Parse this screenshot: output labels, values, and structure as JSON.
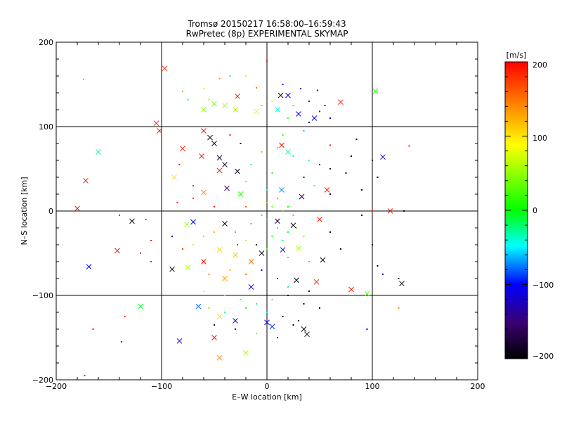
{
  "chart_data": {
    "type": "scatter",
    "title": "Tromsø 20150217 16:58:00–16:59:43",
    "subtitle": "RwPretec (8p) EXPERIMENTAL SKYMAP",
    "xlabel": "E–W location [km]",
    "ylabel": "N–S location [km]",
    "xlim": [
      -200,
      200
    ],
    "ylim": [
      -200,
      200
    ],
    "grid": true,
    "x_ticks": [
      "−200",
      "−100",
      "0",
      "100",
      "200"
    ],
    "y_ticks": [
      "−200",
      "−100",
      "0",
      "100",
      "200"
    ],
    "colorbar": {
      "label": "[m/s]",
      "range": [
        -200,
        200
      ],
      "ticks": [
        "200",
        "100",
        "0",
        "−100",
        "−200"
      ],
      "colormap": "rainbow (black-purple-blue-cyan-green-yellow-red)"
    },
    "cross_points": [
      {
        "x": 103,
        "y": 142,
        "v": 10
      },
      {
        "x": -97,
        "y": 169,
        "v": 185
      },
      {
        "x": -28,
        "y": 136,
        "v": 190
      },
      {
        "x": 13,
        "y": 137,
        "v": -180
      },
      {
        "x": 20,
        "y": 137,
        "v": -100
      },
      {
        "x": 70,
        "y": 129,
        "v": 190
      },
      {
        "x": -40,
        "y": 125,
        "v": 60
      },
      {
        "x": -50,
        "y": 127,
        "v": 40
      },
      {
        "x": -60,
        "y": 120,
        "v": 50
      },
      {
        "x": -30,
        "y": 120,
        "v": 60
      },
      {
        "x": -10,
        "y": 118,
        "v": 80
      },
      {
        "x": 10,
        "y": 120,
        "v": -40
      },
      {
        "x": 30,
        "y": 115,
        "v": -100
      },
      {
        "x": 45,
        "y": 110,
        "v": -110
      },
      {
        "x": -105,
        "y": 104,
        "v": 190
      },
      {
        "x": -102,
        "y": 95,
        "v": 190
      },
      {
        "x": -60,
        "y": 95,
        "v": 190
      },
      {
        "x": -80,
        "y": 74,
        "v": 190
      },
      {
        "x": -54,
        "y": 87,
        "v": -190
      },
      {
        "x": -50,
        "y": 80,
        "v": -190
      },
      {
        "x": -45,
        "y": 63,
        "v": -180
      },
      {
        "x": -40,
        "y": 55,
        "v": -170
      },
      {
        "x": 14,
        "y": 78,
        "v": 190
      },
      {
        "x": 20,
        "y": 70,
        "v": -30
      },
      {
        "x": 110,
        "y": 64,
        "v": -110
      },
      {
        "x": -62,
        "y": 65,
        "v": 190
      },
      {
        "x": -28,
        "y": 47,
        "v": -190
      },
      {
        "x": -45,
        "y": 48,
        "v": 190
      },
      {
        "x": -88,
        "y": 40,
        "v": 100
      },
      {
        "x": -38,
        "y": 27,
        "v": -150
      },
      {
        "x": -25,
        "y": 20,
        "v": 10
      },
      {
        "x": -172,
        "y": 36,
        "v": 190
      },
      {
        "x": -160,
        "y": 70,
        "v": -30
      },
      {
        "x": -180,
        "y": 3,
        "v": 190
      },
      {
        "x": -60,
        "y": 22,
        "v": 140
      },
      {
        "x": 14,
        "y": 25,
        "v": -70
      },
      {
        "x": 33,
        "y": 17,
        "v": -190
      },
      {
        "x": 57,
        "y": 25,
        "v": 190
      },
      {
        "x": 117,
        "y": 0,
        "v": 190
      },
      {
        "x": -128,
        "y": -12,
        "v": -190
      },
      {
        "x": -142,
        "y": -47,
        "v": 190
      },
      {
        "x": -169,
        "y": -66,
        "v": -100
      },
      {
        "x": -76,
        "y": -16,
        "v": 50
      },
      {
        "x": -70,
        "y": -13,
        "v": -100
      },
      {
        "x": -40,
        "y": -15,
        "v": -190
      },
      {
        "x": 10,
        "y": -12,
        "v": -180
      },
      {
        "x": 25,
        "y": -17,
        "v": -190
      },
      {
        "x": 50,
        "y": -10,
        "v": 180
      },
      {
        "x": -90,
        "y": -69,
        "v": -190
      },
      {
        "x": -75,
        "y": -67,
        "v": 60
      },
      {
        "x": -60,
        "y": -60,
        "v": 190
      },
      {
        "x": -45,
        "y": -46,
        "v": 110
      },
      {
        "x": -30,
        "y": -52,
        "v": 110
      },
      {
        "x": -15,
        "y": -60,
        "v": 150
      },
      {
        "x": -5,
        "y": -50,
        "v": -190
      },
      {
        "x": 15,
        "y": -46,
        "v": -100
      },
      {
        "x": 30,
        "y": -44,
        "v": 60
      },
      {
        "x": 53,
        "y": -58,
        "v": -190
      },
      {
        "x": -40,
        "y": -80,
        "v": 130
      },
      {
        "x": -15,
        "y": -90,
        "v": -100
      },
      {
        "x": 28,
        "y": -82,
        "v": -190
      },
      {
        "x": 47,
        "y": -84,
        "v": 190
      },
      {
        "x": 80,
        "y": -93,
        "v": 190
      },
      {
        "x": 128,
        "y": -86,
        "v": -190
      },
      {
        "x": 95,
        "y": -98,
        "v": 30
      },
      {
        "x": -120,
        "y": -113,
        "v": -10
      },
      {
        "x": -65,
        "y": -113,
        "v": -80
      },
      {
        "x": -45,
        "y": -125,
        "v": 100
      },
      {
        "x": -30,
        "y": -130,
        "v": -100
      },
      {
        "x": 0,
        "y": -132,
        "v": -110
      },
      {
        "x": 5,
        "y": -137,
        "v": -90
      },
      {
        "x": 35,
        "y": -140,
        "v": -190
      },
      {
        "x": 38,
        "y": -146,
        "v": -190
      },
      {
        "x": -50,
        "y": -150,
        "v": 190
      },
      {
        "x": -83,
        "y": -154,
        "v": -110
      },
      {
        "x": -45,
        "y": -174,
        "v": 140
      },
      {
        "x": -20,
        "y": -168,
        "v": 60
      }
    ],
    "dot_points": [
      {
        "x": -174,
        "y": 156,
        "v": -20
      },
      {
        "x": 0,
        "y": 178,
        "v": 190
      },
      {
        "x": -45,
        "y": 157,
        "v": 140
      },
      {
        "x": -35,
        "y": 160,
        "v": -40
      },
      {
        "x": -20,
        "y": 160,
        "v": 100
      },
      {
        "x": -60,
        "y": 145,
        "v": 100
      },
      {
        "x": -80,
        "y": 142,
        "v": 20
      },
      {
        "x": -75,
        "y": 132,
        "v": -20
      },
      {
        "x": -55,
        "y": 132,
        "v": 40
      },
      {
        "x": -10,
        "y": 146,
        "v": 150
      },
      {
        "x": 15,
        "y": 150,
        "v": -100
      },
      {
        "x": 32,
        "y": 145,
        "v": -110
      },
      {
        "x": 48,
        "y": 143,
        "v": -120
      },
      {
        "x": 40,
        "y": 130,
        "v": -120
      },
      {
        "x": 55,
        "y": 125,
        "v": -130
      },
      {
        "x": 50,
        "y": 118,
        "v": -140
      },
      {
        "x": 60,
        "y": 110,
        "v": -110
      },
      {
        "x": 40,
        "y": 105,
        "v": -120
      },
      {
        "x": 25,
        "y": 125,
        "v": -40
      },
      {
        "x": 5,
        "y": 130,
        "v": 60
      },
      {
        "x": -5,
        "y": 125,
        "v": -30
      },
      {
        "x": 20,
        "y": 110,
        "v": 20
      },
      {
        "x": 35,
        "y": 95,
        "v": -60
      },
      {
        "x": 85,
        "y": 85,
        "v": -190
      },
      {
        "x": 135,
        "y": 77,
        "v": 190
      },
      {
        "x": 15,
        "y": 90,
        "v": 20
      },
      {
        "x": 10,
        "y": 75,
        "v": -20
      },
      {
        "x": 25,
        "y": 65,
        "v": -30
      },
      {
        "x": 40,
        "y": 60,
        "v": -50
      },
      {
        "x": 50,
        "y": 55,
        "v": -150
      },
      {
        "x": 60,
        "y": 50,
        "v": -170
      },
      {
        "x": 75,
        "y": 45,
        "v": -180
      },
      {
        "x": 100,
        "y": 60,
        "v": -190
      },
      {
        "x": 105,
        "y": 40,
        "v": -190
      },
      {
        "x": -5,
        "y": 70,
        "v": 30
      },
      {
        "x": -15,
        "y": 55,
        "v": -30
      },
      {
        "x": 5,
        "y": 45,
        "v": 10
      },
      {
        "x": 0,
        "y": 25,
        "v": -50
      },
      {
        "x": -20,
        "y": 35,
        "v": 40
      },
      {
        "x": 35,
        "y": 40,
        "v": -140
      },
      {
        "x": 45,
        "y": 30,
        "v": -40
      },
      {
        "x": 60,
        "y": 20,
        "v": -170
      },
      {
        "x": 90,
        "y": 25,
        "v": -180
      },
      {
        "x": -70,
        "y": 15,
        "v": 180
      },
      {
        "x": -85,
        "y": 10,
        "v": 190
      },
      {
        "x": -50,
        "y": 5,
        "v": 190
      },
      {
        "x": -20,
        "y": 5,
        "v": 160
      },
      {
        "x": 5,
        "y": 5,
        "v": 30
      },
      {
        "x": 15,
        "y": 0,
        "v": 20
      },
      {
        "x": 25,
        "y": -5,
        "v": 10
      },
      {
        "x": 0,
        "y": -10,
        "v": -10
      },
      {
        "x": 10,
        "y": -20,
        "v": -30
      },
      {
        "x": 20,
        "y": -25,
        "v": -20
      },
      {
        "x": 35,
        "y": -30,
        "v": 40
      },
      {
        "x": 60,
        "y": -25,
        "v": -180
      },
      {
        "x": 70,
        "y": -45,
        "v": -190
      },
      {
        "x": 100,
        "y": -40,
        "v": -190
      },
      {
        "x": 105,
        "y": -65,
        "v": -190
      },
      {
        "x": 110,
        "y": -75,
        "v": -120
      },
      {
        "x": 125,
        "y": -80,
        "v": -190
      },
      {
        "x": 130,
        "y": 0,
        "v": -190
      },
      {
        "x": 100,
        "y": 0,
        "v": 190
      },
      {
        "x": -140,
        "y": -5,
        "v": 190
      },
      {
        "x": -115,
        "y": -10,
        "v": 180
      },
      {
        "x": -110,
        "y": -35,
        "v": 190
      },
      {
        "x": -120,
        "y": -50,
        "v": 190
      },
      {
        "x": -110,
        "y": -60,
        "v": 190
      },
      {
        "x": -90,
        "y": -30,
        "v": -110
      },
      {
        "x": -80,
        "y": -45,
        "v": 180
      },
      {
        "x": -70,
        "y": -40,
        "v": 100
      },
      {
        "x": -60,
        "y": -30,
        "v": 40
      },
      {
        "x": -50,
        "y": -25,
        "v": 120
      },
      {
        "x": -30,
        "y": -25,
        "v": -10
      },
      {
        "x": -20,
        "y": -35,
        "v": 60
      },
      {
        "x": -10,
        "y": -40,
        "v": -190
      },
      {
        "x": 0,
        "y": -45,
        "v": 30
      },
      {
        "x": 20,
        "y": -55,
        "v": -20
      },
      {
        "x": 40,
        "y": -60,
        "v": 10
      },
      {
        "x": -55,
        "y": -75,
        "v": 140
      },
      {
        "x": -35,
        "y": -70,
        "v": 120
      },
      {
        "x": -20,
        "y": -75,
        "v": 150
      },
      {
        "x": -5,
        "y": -70,
        "v": -100
      },
      {
        "x": 10,
        "y": -80,
        "v": -190
      },
      {
        "x": 20,
        "y": -90,
        "v": -40
      },
      {
        "x": 40,
        "y": -95,
        "v": -170
      },
      {
        "x": -60,
        "y": -95,
        "v": 80
      },
      {
        "x": -40,
        "y": -100,
        "v": 50
      },
      {
        "x": -25,
        "y": -105,
        "v": 20
      },
      {
        "x": -10,
        "y": -110,
        "v": -20
      },
      {
        "x": 5,
        "y": -105,
        "v": -30
      },
      {
        "x": 20,
        "y": -100,
        "v": -180
      },
      {
        "x": 35,
        "y": -110,
        "v": -190
      },
      {
        "x": 50,
        "y": -115,
        "v": -190
      },
      {
        "x": -55,
        "y": -115,
        "v": 30
      },
      {
        "x": -40,
        "y": -120,
        "v": -30
      },
      {
        "x": -20,
        "y": -115,
        "v": 0
      },
      {
        "x": 0,
        "y": -120,
        "v": -40
      },
      {
        "x": 15,
        "y": -125,
        "v": -190
      },
      {
        "x": 30,
        "y": -130,
        "v": -190
      },
      {
        "x": -50,
        "y": -135,
        "v": -190
      },
      {
        "x": -30,
        "y": -140,
        "v": -110
      },
      {
        "x": -10,
        "y": -145,
        "v": 40
      },
      {
        "x": 10,
        "y": -150,
        "v": -190
      },
      {
        "x": 25,
        "y": -135,
        "v": -190
      },
      {
        "x": 95,
        "y": -140,
        "v": -110
      },
      {
        "x": 125,
        "y": -115,
        "v": 140
      },
      {
        "x": -138,
        "y": -155,
        "v": -100
      },
      {
        "x": -173,
        "y": -195,
        "v": 190
      },
      {
        "x": -165,
        "y": -140,
        "v": 190
      },
      {
        "x": -135,
        "y": -125,
        "v": 190
      },
      {
        "x": -83,
        "y": 55,
        "v": 190
      },
      {
        "x": -70,
        "y": 30,
        "v": 190
      },
      {
        "x": -35,
        "y": 90,
        "v": 190
      },
      {
        "x": -25,
        "y": 80,
        "v": -190
      },
      {
        "x": 60,
        "y": 78,
        "v": 190
      },
      {
        "x": 80,
        "y": 65,
        "v": -190
      },
      {
        "x": 90,
        "y": -5,
        "v": -190
      },
      {
        "x": 0,
        "y": 10,
        "v": 40
      },
      {
        "x": 10,
        "y": 15,
        "v": -10
      },
      {
        "x": 20,
        "y": 5,
        "v": 0
      },
      {
        "x": -5,
        "y": -5,
        "v": 20
      },
      {
        "x": 5,
        "y": -30,
        "v": 10
      },
      {
        "x": 15,
        "y": -35,
        "v": -20
      },
      {
        "x": 28,
        "y": -20,
        "v": 30
      },
      {
        "x": -15,
        "y": -15,
        "v": -60
      },
      {
        "x": -28,
        "y": -40,
        "v": 180
      }
    ]
  }
}
